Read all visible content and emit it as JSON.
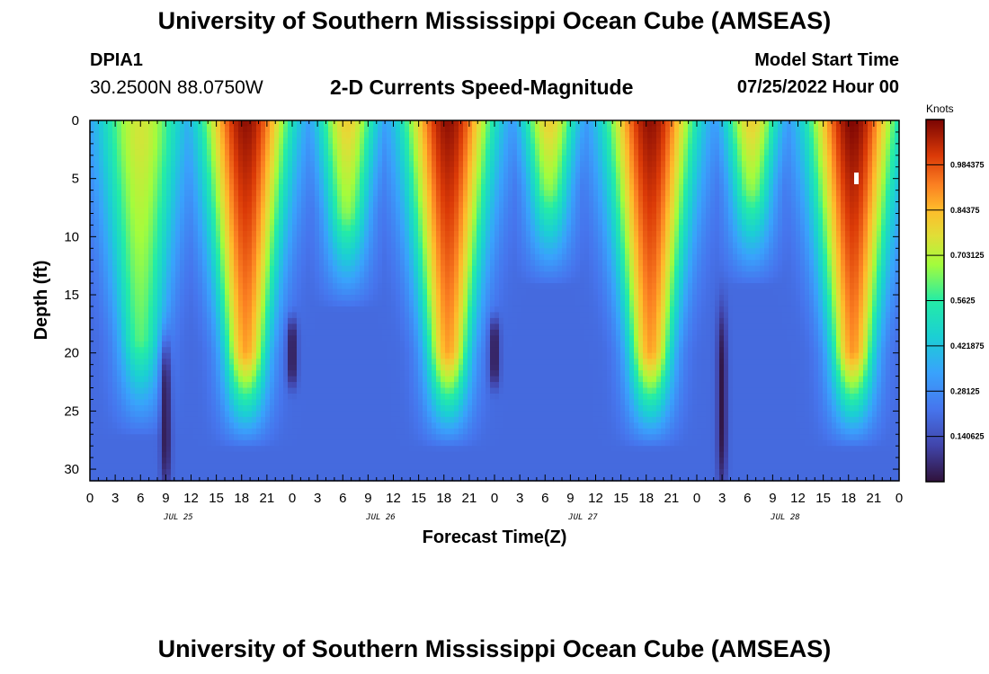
{
  "header": {
    "title": "University of Southern Mississippi Ocean Cube (AMSEAS)",
    "station": "DPIA1",
    "coords": "30.2500N  88.0750W",
    "subtitle": "2-D Currents Speed-Magnitude",
    "model_start_label": "Model Start Time",
    "model_start_value": "07/25/2022 Hour 00"
  },
  "footer": {
    "title": "University of Southern Mississippi Ocean Cube (AMSEAS)"
  },
  "chart_data": {
    "type": "heatmap",
    "title": "2-D Currents Speed-Magnitude",
    "xlabel": "Forecast Time(Z)",
    "ylabel": "Depth (ft)",
    "x_range_hours": [
      0,
      96
    ],
    "ylim": [
      0,
      31
    ],
    "y_reversed": true,
    "x_ticks": [
      {
        "hour": 0,
        "label": "0"
      },
      {
        "hour": 3,
        "label": "3"
      },
      {
        "hour": 6,
        "label": "6"
      },
      {
        "hour": 9,
        "label": "9"
      },
      {
        "hour": 12,
        "label": "12"
      },
      {
        "hour": 15,
        "label": "15"
      },
      {
        "hour": 18,
        "label": "18"
      },
      {
        "hour": 21,
        "label": "21"
      },
      {
        "hour": 24,
        "label": "0"
      },
      {
        "hour": 27,
        "label": "3"
      },
      {
        "hour": 30,
        "label": "6"
      },
      {
        "hour": 33,
        "label": "9"
      },
      {
        "hour": 36,
        "label": "12"
      },
      {
        "hour": 39,
        "label": "15"
      },
      {
        "hour": 42,
        "label": "18"
      },
      {
        "hour": 45,
        "label": "21"
      },
      {
        "hour": 48,
        "label": "0"
      },
      {
        "hour": 51,
        "label": "3"
      },
      {
        "hour": 54,
        "label": "6"
      },
      {
        "hour": 57,
        "label": "9"
      },
      {
        "hour": 60,
        "label": "12"
      },
      {
        "hour": 63,
        "label": "15"
      },
      {
        "hour": 66,
        "label": "18"
      },
      {
        "hour": 69,
        "label": "21"
      },
      {
        "hour": 72,
        "label": "0"
      },
      {
        "hour": 75,
        "label": "3"
      },
      {
        "hour": 78,
        "label": "6"
      },
      {
        "hour": 81,
        "label": "9"
      },
      {
        "hour": 84,
        "label": "12"
      },
      {
        "hour": 87,
        "label": "15"
      },
      {
        "hour": 90,
        "label": "18"
      },
      {
        "hour": 93,
        "label": "21"
      },
      {
        "hour": 96,
        "label": "0"
      }
    ],
    "date_labels": [
      {
        "hour": 10.5,
        "label": "JUL 25"
      },
      {
        "hour": 34.5,
        "label": "JUL 26"
      },
      {
        "hour": 58.5,
        "label": "JUL 27"
      },
      {
        "hour": 82.5,
        "label": "JUL 28"
      }
    ],
    "y_ticks": [
      0,
      5,
      10,
      15,
      20,
      25,
      30
    ],
    "colorbar": {
      "unit": "Knots",
      "range": [
        0,
        1.125
      ],
      "ticks": [
        {
          "value": 0.140625,
          "label": "0.140625"
        },
        {
          "value": 0.28125,
          "label": "0.28125"
        },
        {
          "value": 0.421875,
          "label": "0.421875"
        },
        {
          "value": 0.5625,
          "label": "0.5625"
        },
        {
          "value": 0.703125,
          "label": "0.703125"
        },
        {
          "value": 0.84375,
          "label": "0.84375"
        },
        {
          "value": 0.984375,
          "label": "0.984375"
        }
      ]
    },
    "speed_maxima": [
      {
        "hour": 6.0,
        "peak": 0.74,
        "depth_top": 2,
        "depth_bottom": 19
      },
      {
        "hour": 18.5,
        "peak": 1.1,
        "depth_top": 0,
        "depth_bottom": 20
      },
      {
        "hour": 30.5,
        "peak": 0.8,
        "depth_top": 0,
        "depth_bottom": 8
      },
      {
        "hour": 42.5,
        "peak": 1.1,
        "depth_top": 0,
        "depth_bottom": 20
      },
      {
        "hour": 54.5,
        "peak": 0.8,
        "depth_top": 0,
        "depth_bottom": 6
      },
      {
        "hour": 66.5,
        "peak": 1.1,
        "depth_top": 0,
        "depth_bottom": 20
      },
      {
        "hour": 78.5,
        "peak": 0.8,
        "depth_top": 0,
        "depth_bottom": 6
      },
      {
        "hour": 90.5,
        "peak": 1.12,
        "depth_top": 0,
        "depth_bottom": 20
      }
    ],
    "speed_minima": [
      {
        "hour": 9.0,
        "depth_top": 20,
        "depth_bottom": 31
      },
      {
        "hour": 24.0,
        "depth_top": 18,
        "depth_bottom": 22
      },
      {
        "hour": 48.0,
        "depth_top": 18,
        "depth_bottom": 22
      },
      {
        "hour": 75.0,
        "depth_top": 17,
        "depth_bottom": 31
      }
    ],
    "background_speed": 0.2
  }
}
